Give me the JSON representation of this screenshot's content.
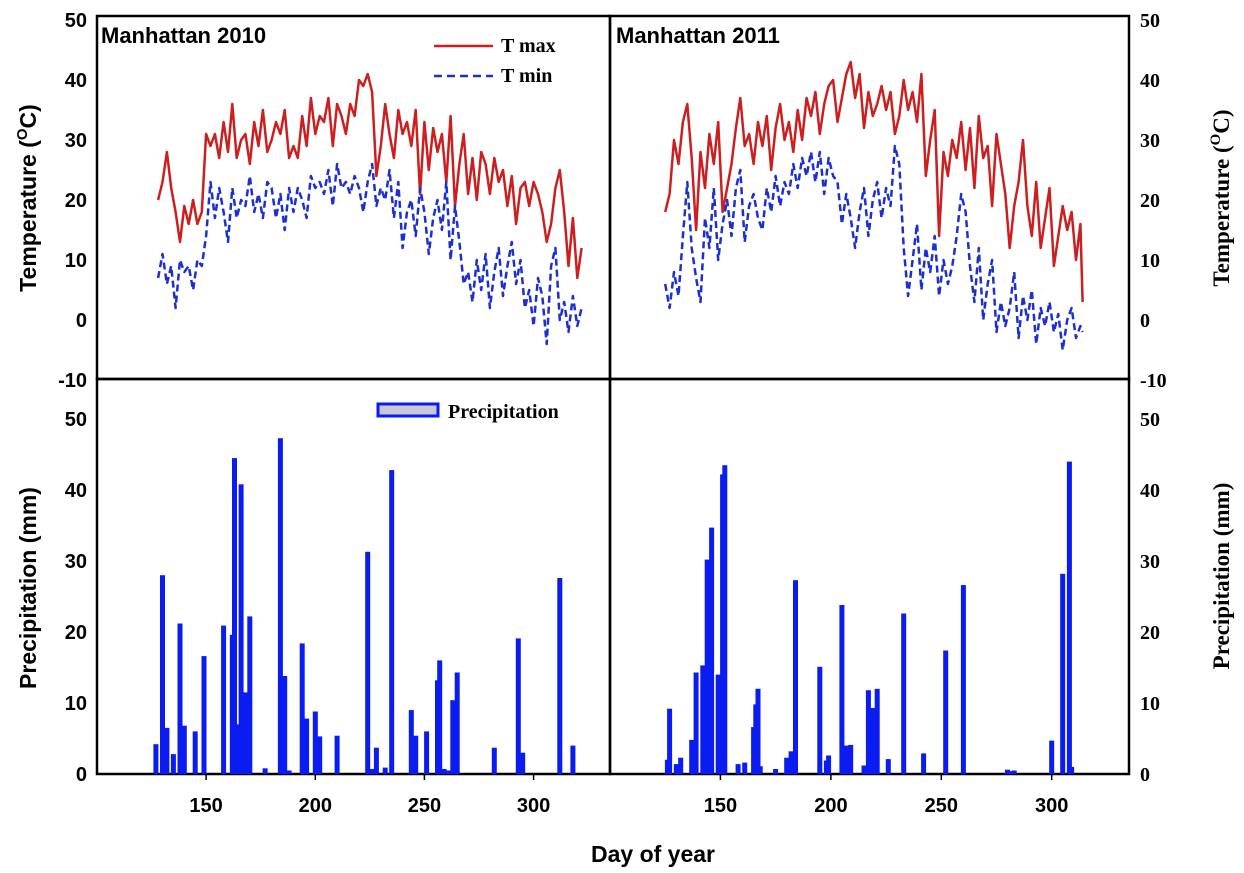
{
  "chart_data": [
    {
      "type": "line",
      "panel": "Temperature 2010",
      "title": "Manhattan 2010",
      "ylabel": "Temperature (OC)",
      "ylim": [
        -10,
        50
      ],
      "xlim": [
        100,
        335
      ],
      "yticks": [
        "50",
        "40",
        "30",
        "20",
        "10",
        "0",
        "-10"
      ],
      "legend_position": "top-center",
      "series": [
        {
          "name": "T max",
          "style": "solid",
          "color": "#cc1f1f",
          "x": [
            128,
            130,
            132,
            134,
            136,
            138,
            140,
            142,
            144,
            146,
            148,
            150,
            152,
            154,
            156,
            158,
            160,
            162,
            164,
            166,
            168,
            170,
            172,
            174,
            176,
            178,
            180,
            182,
            184,
            186,
            188,
            190,
            192,
            194,
            196,
            198,
            200,
            202,
            204,
            206,
            208,
            210,
            212,
            214,
            216,
            218,
            220,
            222,
            224,
            226,
            228,
            230,
            232,
            234,
            236,
            238,
            240,
            242,
            244,
            246,
            248,
            250,
            252,
            254,
            256,
            258,
            260,
            262,
            264,
            266,
            268,
            270,
            272,
            274,
            276,
            278,
            280,
            282,
            284,
            286,
            288,
            290,
            292,
            294,
            296,
            298,
            300,
            302,
            304,
            306,
            308,
            310,
            312,
            314,
            316,
            318,
            320,
            322
          ],
          "y": [
            20,
            23,
            28,
            22,
            18,
            13,
            19,
            16,
            20,
            16,
            18,
            31,
            29,
            31,
            27,
            33,
            28,
            36,
            27,
            30,
            31,
            26,
            33,
            29,
            35,
            28,
            30,
            33,
            31,
            35,
            27,
            29,
            27,
            34,
            29,
            37,
            31,
            34,
            33,
            37,
            29,
            36,
            34,
            31,
            36,
            34,
            40,
            39,
            41,
            38,
            24,
            29,
            36,
            31,
            27,
            35,
            31,
            33,
            29,
            35,
            21,
            33,
            25,
            32,
            28,
            31,
            23,
            34,
            19,
            26,
            31,
            21,
            27,
            20,
            28,
            26,
            21,
            27,
            23,
            25,
            19,
            24,
            16,
            22,
            23,
            19,
            23,
            21,
            18,
            13,
            16,
            22,
            25,
            18,
            9,
            17,
            7,
            12
          ]
        },
        {
          "name": "T min",
          "style": "dashed",
          "color": "#1c2fd1",
          "x": [
            128,
            130,
            132,
            134,
            136,
            138,
            140,
            142,
            144,
            146,
            148,
            150,
            152,
            154,
            156,
            158,
            160,
            162,
            164,
            166,
            168,
            170,
            172,
            174,
            176,
            178,
            180,
            182,
            184,
            186,
            188,
            190,
            192,
            194,
            196,
            198,
            200,
            202,
            204,
            206,
            208,
            210,
            212,
            214,
            216,
            218,
            220,
            222,
            224,
            226,
            228,
            230,
            232,
            234,
            236,
            238,
            240,
            242,
            244,
            246,
            248,
            250,
            252,
            254,
            256,
            258,
            260,
            262,
            264,
            266,
            268,
            270,
            272,
            274,
            276,
            278,
            280,
            282,
            284,
            286,
            288,
            290,
            292,
            294,
            296,
            298,
            300,
            302,
            304,
            306,
            308,
            310,
            312,
            314,
            316,
            318,
            320,
            322
          ],
          "y": [
            7,
            11,
            6,
            9,
            2,
            10,
            8,
            9,
            5,
            10,
            9,
            14,
            23,
            17,
            22,
            18,
            13,
            22,
            17,
            20,
            19,
            24,
            18,
            21,
            17,
            23,
            22,
            17,
            21,
            15,
            22,
            18,
            22,
            20,
            17,
            24,
            22,
            23,
            21,
            25,
            19,
            26,
            22,
            23,
            21,
            24,
            22,
            18,
            23,
            26,
            19,
            22,
            20,
            25,
            17,
            23,
            12,
            18,
            20,
            14,
            22,
            18,
            11,
            17,
            20,
            15,
            23,
            10,
            19,
            13,
            6,
            8,
            3,
            10,
            5,
            11,
            2,
            8,
            12,
            4,
            9,
            13,
            6,
            10,
            2,
            5,
            -1,
            7,
            4,
            -4,
            9,
            12,
            0,
            3,
            -2,
            4,
            -1,
            2
          ]
        }
      ]
    },
    {
      "type": "line",
      "panel": "Temperature 2011",
      "title": "Manhattan 2011",
      "ylabel": "Temperature (OC)",
      "ylim": [
        -10,
        50
      ],
      "xlim": [
        100,
        335
      ],
      "yticks": [
        "50",
        "40",
        "30",
        "20",
        "10",
        "0",
        "-10"
      ],
      "series": [
        {
          "name": "T max",
          "style": "solid",
          "color": "#cc1f1f",
          "x": [
            125,
            127,
            129,
            131,
            133,
            135,
            137,
            139,
            141,
            143,
            145,
            147,
            149,
            151,
            153,
            155,
            157,
            159,
            161,
            163,
            165,
            167,
            169,
            171,
            173,
            175,
            177,
            179,
            181,
            183,
            185,
            187,
            189,
            191,
            193,
            195,
            197,
            199,
            201,
            203,
            205,
            207,
            209,
            211,
            213,
            215,
            217,
            219,
            221,
            223,
            225,
            227,
            229,
            231,
            233,
            235,
            237,
            239,
            241,
            243,
            245,
            247,
            249,
            251,
            253,
            255,
            257,
            259,
            261,
            263,
            265,
            267,
            269,
            271,
            273,
            275,
            277,
            279,
            281,
            283,
            285,
            287,
            289,
            291,
            293,
            295,
            297,
            299,
            301,
            303,
            305,
            307,
            309,
            311,
            313,
            314
          ],
          "y": [
            18,
            21,
            30,
            26,
            33,
            36,
            27,
            15,
            28,
            22,
            31,
            26,
            33,
            18,
            22,
            26,
            32,
            37,
            29,
            31,
            26,
            33,
            29,
            34,
            25,
            32,
            36,
            30,
            33,
            28,
            35,
            30,
            37,
            34,
            38,
            31,
            36,
            39,
            40,
            33,
            37,
            41,
            43,
            37,
            41,
            32,
            38,
            34,
            36,
            39,
            35,
            38,
            31,
            34,
            40,
            35,
            38,
            33,
            41,
            24,
            30,
            35,
            14,
            28,
            24,
            30,
            27,
            33,
            25,
            32,
            22,
            34,
            27,
            29,
            19,
            31,
            26,
            21,
            12,
            19,
            23,
            30,
            19,
            14,
            23,
            12,
            17,
            22,
            9,
            14,
            19,
            15,
            18,
            10,
            16,
            3
          ]
        },
        {
          "name": "T min",
          "style": "dashed",
          "color": "#1c2fd1",
          "x": [
            125,
            127,
            129,
            131,
            133,
            135,
            137,
            139,
            141,
            143,
            145,
            147,
            149,
            151,
            153,
            155,
            157,
            159,
            161,
            163,
            165,
            167,
            169,
            171,
            173,
            175,
            177,
            179,
            181,
            183,
            185,
            187,
            189,
            191,
            193,
            195,
            197,
            199,
            201,
            203,
            205,
            207,
            209,
            211,
            213,
            215,
            217,
            219,
            221,
            223,
            225,
            227,
            229,
            231,
            233,
            235,
            237,
            239,
            241,
            243,
            245,
            247,
            249,
            251,
            253,
            255,
            257,
            259,
            261,
            263,
            265,
            267,
            269,
            271,
            273,
            275,
            277,
            279,
            281,
            283,
            285,
            287,
            289,
            291,
            293,
            295,
            297,
            299,
            301,
            303,
            305,
            307,
            309,
            311,
            313,
            314
          ],
          "y": [
            6,
            2,
            8,
            4,
            14,
            23,
            12,
            7,
            3,
            17,
            12,
            22,
            10,
            16,
            20,
            14,
            22,
            25,
            13,
            19,
            21,
            17,
            15,
            22,
            18,
            24,
            19,
            23,
            21,
            26,
            22,
            27,
            24,
            28,
            23,
            28,
            21,
            27,
            24,
            23,
            16,
            21,
            17,
            12,
            18,
            22,
            14,
            20,
            23,
            17,
            22,
            19,
            29,
            26,
            12,
            4,
            10,
            16,
            5,
            12,
            8,
            14,
            4,
            10,
            6,
            9,
            14,
            21,
            18,
            9,
            3,
            12,
            0,
            6,
            10,
            -2,
            3,
            -1,
            2,
            8,
            -3,
            4,
            0,
            5,
            -4,
            2,
            -1,
            3,
            -2,
            1,
            -5,
            0,
            2,
            -3,
            -1,
            -2
          ]
        }
      ]
    },
    {
      "type": "bar",
      "panel": "Precipitation 2010",
      "ylabel": "Precipitation (mm)",
      "xlabel": "Day of year",
      "ylim": [
        0,
        55
      ],
      "xlim": [
        100,
        335
      ],
      "yticks": [
        "50",
        "40",
        "30",
        "20",
        "10",
        "0"
      ],
      "xticks": [
        "150",
        "200",
        "250",
        "300"
      ],
      "legend_position": "top-right",
      "series": [
        {
          "name": "Precipitation",
          "color": "#0b1cf0",
          "x": [
            127,
            130,
            132,
            135,
            138,
            140,
            145,
            149,
            158,
            162,
            163,
            164,
            166,
            168,
            170,
            177,
            184,
            186,
            188,
            194,
            196,
            200,
            202,
            210,
            224,
            226,
            228,
            232,
            235,
            244,
            246,
            251,
            256,
            257,
            259,
            261,
            263,
            265,
            282,
            293,
            295,
            312,
            318
          ],
          "y": [
            4.2,
            28,
            6.5,
            2.8,
            21.2,
            6.8,
            6,
            16.6,
            20.9,
            19.6,
            44.5,
            7,
            40.8,
            11.5,
            22.2,
            0.8,
            47.3,
            13.8,
            0.5,
            18.4,
            7.8,
            8.8,
            5.3,
            5.4,
            31.3,
            0.7,
            3.7,
            0.9,
            42.8,
            9,
            5.4,
            6,
            13.2,
            16,
            0.7,
            0.5,
            10.4,
            14.3,
            3.7,
            19.1,
            3,
            27.6,
            4
          ]
        }
      ]
    },
    {
      "type": "bar",
      "panel": "Precipitation 2011",
      "ylabel": "Precipitation (mm)",
      "xlabel": "Day of year",
      "ylim": [
        0,
        55
      ],
      "xlim": [
        100,
        335
      ],
      "yticks": [
        "50",
        "40",
        "30",
        "20",
        "10",
        "0"
      ],
      "xticks": [
        "150",
        "200",
        "250",
        "300"
      ],
      "series": [
        {
          "name": "Precipitation",
          "color": "#0b1cf0",
          "x": [
            126,
            127,
            130,
            132,
            137,
            139,
            142,
            144,
            146,
            149,
            151,
            152,
            158,
            161,
            165,
            166,
            167,
            168,
            175,
            180,
            182,
            184,
            195,
            198,
            199,
            205,
            207,
            208,
            209,
            215,
            217,
            218,
            219,
            221,
            226,
            233,
            242,
            252,
            260,
            280,
            281,
            283,
            300,
            305,
            308,
            309
          ],
          "y": [
            2,
            9.2,
            1.4,
            2.3,
            4.8,
            14.3,
            15.3,
            30.2,
            34.7,
            14,
            42.2,
            43.5,
            1.4,
            1.6,
            6.6,
            9.8,
            12,
            1.1,
            0.7,
            2.3,
            3.2,
            27.3,
            15.1,
            1.9,
            2.6,
            23.8,
            4,
            3.9,
            4.1,
            1.2,
            11.8,
            1.2,
            9.3,
            12,
            2.1,
            22.6,
            2.9,
            17.4,
            26.6,
            0.6,
            0.4,
            0.5,
            4.7,
            28.2,
            44,
            1
          ]
        }
      ]
    }
  ],
  "axes": {
    "left_temp_ticks": [
      "50",
      "40",
      "30",
      "20",
      "10",
      "0",
      "-10"
    ],
    "left_precip_ticks": [
      "50",
      "40",
      "30",
      "20",
      "10",
      "0"
    ],
    "right_temp_ticks": [
      "50",
      "40",
      "30",
      "20",
      "10",
      "0",
      "-10"
    ],
    "right_precip_ticks": [
      "50",
      "40",
      "30",
      "20",
      "10",
      "0"
    ],
    "x_ticks": [
      "150",
      "200",
      "250",
      "300"
    ]
  },
  "labels": {
    "title_2010": "Manhattan 2010",
    "title_2011": "Manhattan 2011",
    "temp_ylabel_main": "Temperature (",
    "temp_ylabel_sup_o": "O",
    "temp_ylabel_c": "C)",
    "precip_ylabel": "Precipitation (mm)",
    "xlabel": "Day of year",
    "legend_tmax": "T max",
    "legend_tmin": "T min",
    "legend_precip": "Precipitation"
  }
}
